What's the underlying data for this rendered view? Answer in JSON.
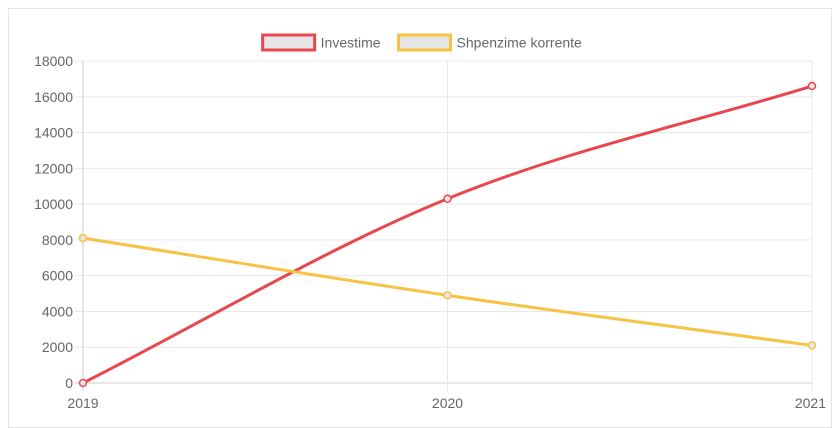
{
  "chart_data": {
    "type": "line",
    "title": "",
    "xlabel": "",
    "ylabel": "",
    "categories": [
      "2019",
      "2020",
      "2021"
    ],
    "ylim": [
      0,
      18000
    ],
    "y_ticks": [
      0,
      2000,
      4000,
      6000,
      8000,
      10000,
      12000,
      14000,
      16000,
      18000
    ],
    "grid": true,
    "legend_position": "top",
    "series": [
      {
        "name": "Investime",
        "values": [
          0,
          10300,
          16600
        ],
        "color": "#e8484d",
        "fill": "#e6e6e6"
      },
      {
        "name": "Shpenzime korrente",
        "values": [
          8100,
          4900,
          2100
        ],
        "color": "#f6c342",
        "fill": "#e6e6e6"
      }
    ]
  }
}
